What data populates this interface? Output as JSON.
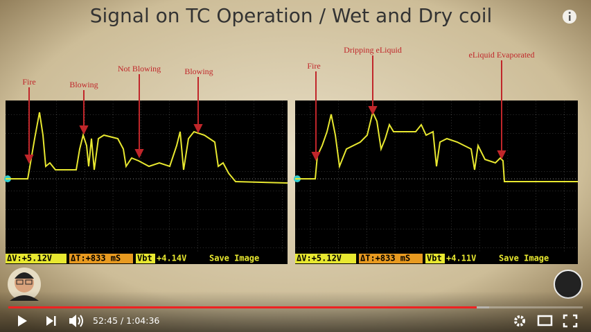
{
  "header": {
    "title": "Signal on TC Operation / Wet and Dry coil"
  },
  "scopes": [
    {
      "annotations": [
        "Fire",
        "Blowing",
        "Not Blowing",
        "Blowing"
      ],
      "status": {
        "dv": "ΔV:+5.12V",
        "dt": "ΔT:+833 mS",
        "vbt_label": "Vbt",
        "vbt": "+4.14V",
        "save": "Save Image"
      }
    },
    {
      "annotations": [
        "Fire",
        "Dripping eLiquid",
        "eLiquid Evaporated"
      ],
      "status": {
        "dv": "ΔV:+5.12V",
        "dt": "ΔT:+833 mS",
        "vbt_label": "Vbt",
        "vbt": "+4.11V",
        "save": "Save Image"
      }
    }
  ],
  "player": {
    "time": "52:45 / 1:04:36"
  }
}
